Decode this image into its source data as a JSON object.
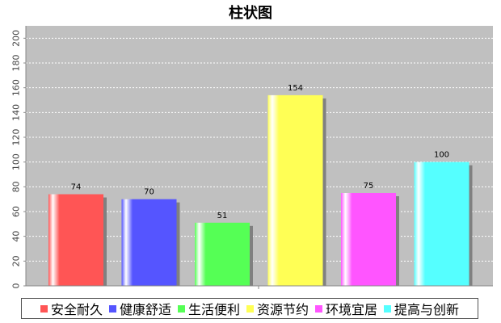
{
  "chart_data": {
    "type": "bar",
    "title": "柱状图",
    "categories": [
      "安全耐久",
      "健康舒适",
      "生活便利",
      "资源节约",
      "环境宜居",
      "提高与创新"
    ],
    "values": [
      74,
      70,
      51,
      154,
      75,
      100
    ],
    "colors": [
      "#ff5555",
      "#5555ff",
      "#55ff55",
      "#ffff55",
      "#ff55ff",
      "#55ffff"
    ],
    "ylim": [
      0,
      210
    ],
    "yticks": [
      "0",
      "20",
      "40",
      "60",
      "80",
      "100",
      "120",
      "140",
      "160",
      "180",
      "200"
    ],
    "grid": true,
    "legend_position": "bottom"
  }
}
